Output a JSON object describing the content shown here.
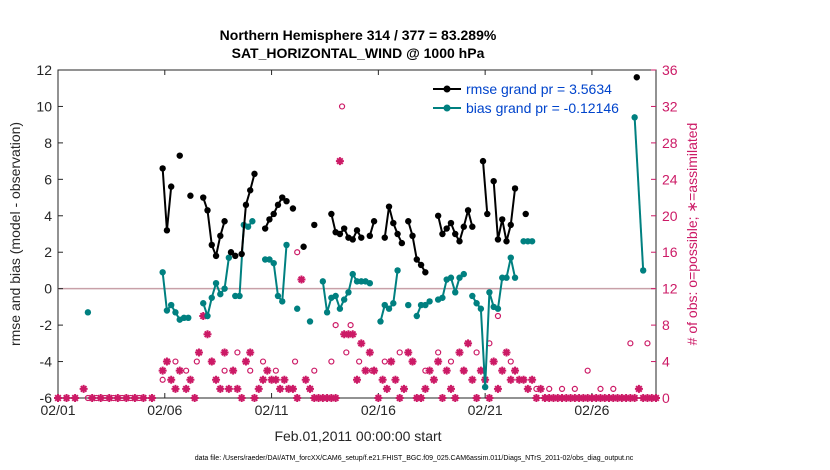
{
  "chart_data": {
    "type": "line",
    "title_line1": "Northern Hemisphere 314 / 377 = 83.289%",
    "title_line2": "SAT_HORIZONTAL_WIND @ 1000 hPa",
    "xlabel": "Feb.01,2011 00:00:00 start",
    "ylabel_left": "rmse and bias (model - observation)",
    "ylabel_right": "# of obs: o=possible; ∗=assimilated",
    "footer": "data file: /Users/raeder/DAI/ATM_forcXX/CAM6_setup/f.e21.FHIST_BGC.f09_025.CAM6assim.011/Diags_NTrS_2011-02/obs_diag_output.nc",
    "xlim": [
      0,
      28
    ],
    "ylim_left": [
      -6,
      12
    ],
    "ylim_right": [
      0,
      36
    ],
    "x_ticks": [
      0,
      5,
      10,
      15,
      20,
      25
    ],
    "x_tick_labels": [
      "02/01",
      "02/06",
      "02/11",
      "02/16",
      "02/21",
      "02/26"
    ],
    "y_left_ticks": [
      -6,
      -4,
      -2,
      0,
      2,
      4,
      6,
      8,
      10,
      12
    ],
    "y_right_ticks": [
      0,
      4,
      8,
      12,
      16,
      20,
      24,
      28,
      32,
      36
    ],
    "legend": {
      "rmse": "rmse grand pr = 3.5634",
      "bias": "bias grand pr = -0.12146"
    },
    "colors": {
      "rmse": "#000000",
      "bias": "#008080",
      "obs": "#cc1a66",
      "zero_line": "#c8a0a8",
      "axis": "#262626",
      "blue_legend_text": "#0044cc"
    },
    "rmse_series": [
      [
        [
          4.9,
          6.6
        ],
        [
          5.1,
          3.2
        ],
        [
          5.3,
          5.6
        ]
      ],
      [
        [
          5.7,
          7.3
        ]
      ],
      [
        [
          6.2,
          5.1
        ]
      ],
      [
        [
          6.8,
          5.0
        ],
        [
          7.0,
          4.3
        ],
        [
          7.2,
          2.4
        ],
        [
          7.4,
          1.8
        ],
        [
          7.6,
          2.9
        ],
        [
          7.8,
          3.7
        ]
      ],
      [
        [
          8.1,
          2.0
        ],
        [
          8.3,
          1.8
        ]
      ],
      [
        [
          8.6,
          1.9
        ],
        [
          8.8,
          4.6
        ],
        [
          9.0,
          5.4
        ],
        [
          9.2,
          6.3
        ]
      ],
      [
        [
          9.7,
          3.3
        ],
        [
          9.9,
          3.8
        ],
        [
          10.1,
          4.1
        ],
        [
          10.3,
          4.6
        ],
        [
          10.5,
          5.0
        ],
        [
          10.7,
          4.8
        ]
      ],
      [
        [
          11.0,
          4.4
        ]
      ],
      [
        [
          11.5,
          2.3
        ]
      ],
      [
        [
          12.0,
          3.5
        ]
      ],
      [
        [
          12.8,
          4.1
        ],
        [
          13.0,
          3.1
        ],
        [
          13.2,
          3.0
        ],
        [
          13.4,
          3.3
        ],
        [
          13.6,
          2.8
        ],
        [
          13.8,
          2.7
        ],
        [
          14.0,
          3.2
        ],
        [
          14.2,
          2.8
        ]
      ],
      [
        [
          14.6,
          2.9
        ],
        [
          14.8,
          3.7
        ]
      ],
      [
        [
          15.3,
          2.8
        ],
        [
          15.5,
          4.5
        ],
        [
          15.7,
          3.6
        ],
        [
          15.9,
          3.0
        ],
        [
          16.1,
          2.5
        ]
      ],
      [
        [
          16.4,
          3.7
        ],
        [
          16.6,
          2.9
        ],
        [
          16.8,
          1.6
        ],
        [
          17.0,
          1.3
        ],
        [
          17.2,
          0.9
        ]
      ],
      [
        [
          17.8,
          4.0
        ],
        [
          18.0,
          3.0
        ],
        [
          18.2,
          3.3
        ],
        [
          18.4,
          3.6
        ],
        [
          18.6,
          3.0
        ],
        [
          18.8,
          2.6
        ],
        [
          19.0,
          3.4
        ],
        [
          19.2,
          4.3
        ],
        [
          19.4,
          3.4
        ]
      ],
      [
        [
          19.9,
          7.0
        ],
        [
          20.1,
          4.1
        ]
      ],
      [
        [
          20.4,
          5.9
        ],
        [
          20.6,
          2.7
        ],
        [
          20.8,
          3.8
        ],
        [
          21.0,
          2.6
        ],
        [
          21.2,
          3.5
        ],
        [
          21.4,
          5.5
        ]
      ],
      [
        [
          21.9,
          4.1
        ]
      ],
      [
        [
          27.1,
          11.6
        ]
      ]
    ],
    "bias_series": [
      [
        [
          1.4,
          -1.3
        ]
      ],
      [
        [
          4.9,
          0.9
        ],
        [
          5.1,
          -1.2
        ],
        [
          5.3,
          -0.9
        ],
        [
          5.5,
          -1.3
        ],
        [
          5.7,
          -1.7
        ],
        [
          5.9,
          -1.6
        ],
        [
          6.1,
          -1.6
        ]
      ],
      [
        [
          6.8,
          -0.8
        ],
        [
          7.0,
          -1.5
        ],
        [
          7.2,
          -0.5
        ],
        [
          7.4,
          0.3
        ],
        [
          7.6,
          -0.3
        ],
        [
          7.8,
          0.0
        ],
        [
          8.0,
          1.7
        ]
      ],
      [
        [
          8.3,
          -0.4
        ],
        [
          8.5,
          -0.4
        ],
        [
          8.7,
          3.5
        ],
        [
          8.9,
          3.4
        ],
        [
          9.1,
          3.7
        ]
      ],
      [
        [
          9.7,
          1.6
        ],
        [
          9.9,
          1.6
        ],
        [
          10.1,
          1.4
        ],
        [
          10.3,
          -0.4
        ],
        [
          10.5,
          -0.7
        ],
        [
          10.7,
          2.4
        ]
      ],
      [
        [
          11.2,
          -1.1
        ]
      ],
      [
        [
          11.8,
          -1.8
        ]
      ],
      [
        [
          12.4,
          0.4
        ],
        [
          12.6,
          -1.3
        ],
        [
          12.8,
          -0.5
        ],
        [
          13.0,
          -0.4
        ],
        [
          13.2,
          -1.1
        ],
        [
          13.4,
          -0.6
        ],
        [
          13.6,
          -0.2
        ],
        [
          13.8,
          0.8
        ],
        [
          14.0,
          0.4
        ],
        [
          14.2,
          0.4
        ],
        [
          14.4,
          0.4
        ],
        [
          14.6,
          0.3
        ]
      ],
      [
        [
          15.1,
          -1.8
        ],
        [
          15.3,
          -0.9
        ],
        [
          15.5,
          -1.1
        ],
        [
          15.7,
          -0.8
        ],
        [
          15.9,
          1.0
        ]
      ],
      [
        [
          16.4,
          -0.9
        ]
      ],
      [
        [
          16.8,
          -1.5
        ],
        [
          17.0,
          -0.9
        ],
        [
          17.2,
          -0.9
        ],
        [
          17.4,
          -0.7
        ]
      ],
      [
        [
          17.8,
          -0.6
        ],
        [
          18.0,
          -0.5
        ],
        [
          18.2,
          0.5
        ],
        [
          18.4,
          0.6
        ],
        [
          18.6,
          -0.2
        ],
        [
          18.8,
          0.6
        ],
        [
          19.0,
          0.8
        ]
      ],
      [
        [
          19.4,
          -0.4
        ],
        [
          19.6,
          -0.8
        ],
        [
          19.8,
          -1.1
        ],
        [
          20.0,
          -5.4
        ],
        [
          20.2,
          -0.2
        ],
        [
          20.4,
          -1.0
        ],
        [
          20.6,
          -1.1
        ],
        [
          20.8,
          0.6
        ],
        [
          21.0,
          0.6
        ],
        [
          21.2,
          1.7
        ],
        [
          21.4,
          0.6
        ]
      ],
      [
        [
          21.8,
          2.6
        ],
        [
          22.0,
          2.6
        ],
        [
          22.2,
          2.6
        ]
      ],
      [
        [
          27.0,
          9.4
        ],
        [
          27.4,
          1.0
        ]
      ]
    ],
    "obs_possible": [
      [
        1.4,
        0
      ],
      [
        1.8,
        0
      ],
      [
        2.2,
        0
      ],
      [
        2.6,
        0
      ],
      [
        3.0,
        0
      ],
      [
        3.4,
        0
      ],
      [
        3.8,
        0
      ],
      [
        4.9,
        2
      ],
      [
        5.5,
        4
      ],
      [
        6.0,
        3
      ],
      [
        6.5,
        4
      ],
      [
        7.2,
        4
      ],
      [
        7.8,
        3
      ],
      [
        8.4,
        5
      ],
      [
        9.0,
        3
      ],
      [
        9.6,
        4
      ],
      [
        10.2,
        3
      ],
      [
        11.1,
        4
      ],
      [
        12.0,
        3
      ],
      [
        12.8,
        4
      ],
      [
        13.5,
        5
      ],
      [
        14.1,
        4
      ],
      [
        14.7,
        3
      ],
      [
        15.3,
        4
      ],
      [
        16.0,
        5
      ],
      [
        16.6,
        4
      ],
      [
        17.2,
        3
      ],
      [
        13.3,
        32
      ],
      [
        13.0,
        8
      ],
      [
        13.7,
        8
      ],
      [
        11.2,
        16
      ],
      [
        17.8,
        5
      ],
      [
        18.4,
        4
      ],
      [
        19.0,
        3
      ],
      [
        19.6,
        5
      ],
      [
        20.2,
        6
      ],
      [
        20.6,
        9
      ],
      [
        21.2,
        4
      ],
      [
        21.8,
        2
      ],
      [
        22.4,
        1
      ],
      [
        23.0,
        1
      ],
      [
        23.6,
        1
      ],
      [
        24.2,
        1
      ],
      [
        24.8,
        3
      ],
      [
        25.4,
        1
      ],
      [
        26.0,
        1
      ],
      [
        26.8,
        6
      ],
      [
        27.6,
        6
      ]
    ],
    "obs_assimilated": [
      [
        0.0,
        0
      ],
      [
        0.4,
        0
      ],
      [
        0.8,
        0
      ],
      [
        1.2,
        1
      ],
      [
        1.6,
        0
      ],
      [
        2.0,
        0
      ],
      [
        2.4,
        0
      ],
      [
        2.8,
        0
      ],
      [
        3.2,
        0
      ],
      [
        3.6,
        0
      ],
      [
        4.0,
        0
      ],
      [
        4.4,
        0
      ],
      [
        4.9,
        3
      ],
      [
        5.1,
        4
      ],
      [
        5.3,
        2
      ],
      [
        5.5,
        1
      ],
      [
        5.7,
        3
      ],
      [
        6.0,
        1
      ],
      [
        6.2,
        2
      ],
      [
        6.4,
        0
      ],
      [
        6.6,
        5
      ],
      [
        6.8,
        9
      ],
      [
        7.0,
        7
      ],
      [
        7.2,
        4
      ],
      [
        7.4,
        2
      ],
      [
        7.6,
        1
      ],
      [
        7.8,
        5
      ],
      [
        8.0,
        1
      ],
      [
        8.2,
        3
      ],
      [
        8.4,
        1
      ],
      [
        8.6,
        0
      ],
      [
        8.8,
        4
      ],
      [
        9.0,
        5
      ],
      [
        9.2,
        0
      ],
      [
        9.4,
        1
      ],
      [
        9.6,
        2
      ],
      [
        9.8,
        3
      ],
      [
        10.0,
        2
      ],
      [
        10.2,
        2
      ],
      [
        10.4,
        1
      ],
      [
        10.6,
        2
      ],
      [
        10.8,
        1
      ],
      [
        11.0,
        1
      ],
      [
        11.2,
        0
      ],
      [
        11.4,
        13
      ],
      [
        11.6,
        2
      ],
      [
        11.8,
        1
      ],
      [
        12.0,
        0
      ],
      [
        12.2,
        0
      ],
      [
        12.4,
        0
      ],
      [
        12.6,
        0
      ],
      [
        12.8,
        0
      ],
      [
        13.0,
        0
      ],
      [
        13.2,
        26
      ],
      [
        13.4,
        7
      ],
      [
        13.6,
        7
      ],
      [
        13.8,
        7
      ],
      [
        14.0,
        2
      ],
      [
        14.2,
        6
      ],
      [
        14.4,
        3
      ],
      [
        14.6,
        5
      ],
      [
        14.8,
        3
      ],
      [
        15.0,
        0
      ],
      [
        15.2,
        2
      ],
      [
        15.4,
        1
      ],
      [
        15.6,
        4
      ],
      [
        15.8,
        2
      ],
      [
        16.0,
        0
      ],
      [
        16.2,
        1
      ],
      [
        16.4,
        5
      ],
      [
        16.6,
        4
      ],
      [
        16.8,
        0
      ],
      [
        17.0,
        0
      ],
      [
        17.2,
        1
      ],
      [
        17.4,
        3
      ],
      [
        17.6,
        2
      ],
      [
        17.8,
        4
      ],
      [
        18.0,
        0
      ],
      [
        18.2,
        3
      ],
      [
        18.4,
        1
      ],
      [
        18.6,
        0
      ],
      [
        18.8,
        5
      ],
      [
        19.0,
        3
      ],
      [
        19.2,
        6
      ],
      [
        19.4,
        2
      ],
      [
        19.6,
        0
      ],
      [
        19.8,
        3
      ],
      [
        20.0,
        2
      ],
      [
        20.2,
        0
      ],
      [
        20.4,
        4
      ],
      [
        20.6,
        1
      ],
      [
        20.8,
        3
      ],
      [
        21.0,
        5
      ],
      [
        21.2,
        2
      ],
      [
        21.4,
        3
      ],
      [
        21.6,
        2
      ],
      [
        21.8,
        2
      ],
      [
        22.0,
        1
      ],
      [
        22.2,
        2
      ],
      [
        22.4,
        0
      ],
      [
        22.6,
        1
      ],
      [
        22.8,
        0
      ],
      [
        23.0,
        0
      ],
      [
        23.2,
        0
      ],
      [
        23.4,
        0
      ],
      [
        23.6,
        0
      ],
      [
        23.8,
        0
      ],
      [
        24.0,
        0
      ],
      [
        24.2,
        0
      ],
      [
        24.4,
        0
      ],
      [
        24.6,
        0
      ],
      [
        24.8,
        0
      ],
      [
        25.0,
        0
      ],
      [
        25.2,
        0
      ],
      [
        25.4,
        0
      ],
      [
        25.6,
        0
      ],
      [
        25.8,
        0
      ],
      [
        26.0,
        0
      ],
      [
        26.2,
        0
      ],
      [
        26.4,
        0
      ],
      [
        26.6,
        0
      ],
      [
        26.8,
        0
      ],
      [
        27.0,
        0
      ],
      [
        27.2,
        1
      ],
      [
        27.4,
        0
      ],
      [
        27.6,
        0
      ],
      [
        27.8,
        0
      ],
      [
        28.0,
        0
      ]
    ]
  }
}
